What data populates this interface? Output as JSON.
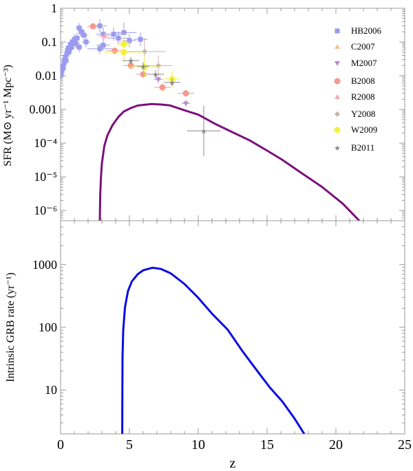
{
  "chart_data": [
    {
      "type": "scatter",
      "panel": "top",
      "ylabel": "SFR (M⊙ yr⁻¹ Mpc⁻³)",
      "yscale": "log",
      "ylim": [
        5e-07,
        1
      ],
      "xlim": [
        0,
        25
      ],
      "ytick_labels": [
        "1",
        "0.1",
        "0.01",
        "0.001",
        "10⁻⁴",
        "10⁻⁵",
        "10⁻⁶"
      ],
      "ytick_values": [
        1,
        0.1,
        0.01,
        0.001,
        0.0001,
        1e-05,
        1e-06
      ],
      "curve": {
        "color": "#7b0f7b",
        "points": [
          [
            2.85,
            5e-07
          ],
          [
            2.88,
            3e-06
          ],
          [
            2.93,
            9e-06
          ],
          [
            3.0,
            2.5e-05
          ],
          [
            3.18,
            8.3e-05
          ],
          [
            3.4,
            0.00017
          ],
          [
            3.77,
            0.00034
          ],
          [
            4.2,
            0.0006
          ],
          [
            4.6,
            0.00087
          ],
          [
            5.1,
            0.0011
          ],
          [
            5.6,
            0.0013
          ],
          [
            6.6,
            0.00145
          ],
          [
            7.3,
            0.0014
          ],
          [
            7.93,
            0.00132
          ],
          [
            9.1,
            0.00091
          ],
          [
            10.0,
            0.0007
          ],
          [
            11.3,
            0.00036
          ],
          [
            12.5,
            0.00021
          ],
          [
            13.75,
            0.00012
          ],
          [
            15.0,
            6e-05
          ],
          [
            16.1,
            3.2e-05
          ],
          [
            17.5,
            1.3e-05
          ],
          [
            19.0,
            5e-06
          ],
          [
            20.5,
            1.6e-06
          ],
          [
            21.7,
            5e-07
          ]
        ]
      },
      "legend": {
        "position": "right",
        "entries": [
          {
            "label": "HB2006",
            "color": "#9a9af0",
            "marker": "square"
          },
          {
            "label": "C2007",
            "color": "#f5c08a",
            "marker": "triangle-up"
          },
          {
            "label": "M2007",
            "color": "#b58ad6",
            "marker": "triangle-down"
          },
          {
            "label": "B2008",
            "color": "#f49a90",
            "marker": "circle"
          },
          {
            "label": "R2008",
            "color": "#f5a7b5",
            "marker": "triangle-up"
          },
          {
            "label": "Y2008",
            "color": "#c9b3a8",
            "marker": "diamond"
          },
          {
            "label": "W2009",
            "color": "#f2f23c",
            "marker": "circle"
          },
          {
            "label": "B2011",
            "color": "#888888",
            "marker": "star"
          }
        ]
      },
      "series": [
        {
          "name": "HB2006",
          "points": [
            [
              0.05,
              0.011,
              0.05,
              0.15
            ],
            [
              0.1,
              0.014,
              0.05,
              0.15
            ],
            [
              0.15,
              0.019,
              0.05,
              0.15
            ],
            [
              0.2,
              0.017,
              0.05,
              0.15
            ],
            [
              0.25,
              0.024,
              0.05,
              0.15
            ],
            [
              0.3,
              0.03,
              0.1,
              0.15
            ],
            [
              0.35,
              0.036,
              0.1,
              0.15
            ],
            [
              0.4,
              0.028,
              0.1,
              0.15
            ],
            [
              0.45,
              0.045,
              0.1,
              0.15
            ],
            [
              0.5,
              0.055,
              0.1,
              0.15
            ],
            [
              0.55,
              0.065,
              0.1,
              0.15
            ],
            [
              0.6,
              0.05,
              0.1,
              0.15
            ],
            [
              0.7,
              0.085,
              0.1,
              0.15
            ],
            [
              0.8,
              0.07,
              0.1,
              0.15
            ],
            [
              0.9,
              0.1,
              0.15,
              0.15
            ],
            [
              1.0,
              0.12,
              0.15,
              0.15
            ],
            [
              1.1,
              0.09,
              0.2,
              0.15
            ],
            [
              1.2,
              0.13,
              0.2,
              0.15
            ],
            [
              1.35,
              0.26,
              0.25,
              0.15
            ],
            [
              1.35,
              0.07,
              0.25,
              0.15
            ],
            [
              1.5,
              0.2,
              0.25,
              0.15
            ],
            [
              1.7,
              0.16,
              0.3,
              0.15
            ],
            [
              1.85,
              0.1,
              0.3,
              0.15
            ],
            [
              2.85,
              0.3,
              0.5,
              0.2
            ],
            [
              2.85,
              0.063,
              0.9,
              0.15
            ],
            [
              3.1,
              0.17,
              0.5,
              0.2
            ],
            [
              3.1,
              0.08,
              0.5,
              0.15
            ],
            [
              3.85,
              0.17,
              0.6,
              0.2
            ],
            [
              4.2,
              0.13,
              0.8,
              0.2
            ],
            [
              4.6,
              0.19,
              0.9,
              0.3
            ],
            [
              5.0,
              0.11,
              0.5,
              0.2
            ],
            [
              5.8,
              0.12,
              0.5,
              0.2
            ]
          ]
        },
        {
          "name": "C2007",
          "points": [
            [
              4.6,
              0.1,
              0.4,
              0.15
            ]
          ]
        },
        {
          "name": "M2007",
          "points": [
            [
              7.1,
              0.0077,
              0.3,
              0.1
            ],
            [
              9.1,
              0.0015,
              0.3,
              0.1
            ]
          ]
        },
        {
          "name": "B2008",
          "points": [
            [
              2.35,
              0.29,
              0.4,
              0.1
            ],
            [
              3.93,
              0.055,
              0.6,
              0.1
            ],
            [
              5.1,
              0.02,
              0.6,
              0.1
            ],
            [
              6.0,
              0.011,
              0.5,
              0.1
            ],
            [
              7.4,
              0.0045,
              0.6,
              0.12
            ],
            [
              9.1,
              0.003,
              0.6,
              0.1
            ]
          ]
        },
        {
          "name": "R2008",
          "points": [
            [
              3.2,
              0.15,
              0.5,
              0.1
            ]
          ]
        },
        {
          "name": "Y2008",
          "points": [
            [
              6.1,
              0.052,
              1.5,
              0.4
            ],
            [
              7.1,
              0.02,
              1.0,
              0.3
            ]
          ]
        },
        {
          "name": "W2009",
          "points": [
            [
              4.6,
              0.085,
              0.4,
              0.3
            ],
            [
              4.6,
              0.05,
              1.5,
              0.3
            ],
            [
              6.1,
              0.018,
              1.2,
              0.3
            ],
            [
              8.1,
              0.008,
              0.6,
              0.25
            ]
          ]
        },
        {
          "name": "B2011",
          "points": [
            [
              5.1,
              0.028,
              0.6,
              0.1
            ],
            [
              6.0,
              0.019,
              0.4,
              0.12
            ],
            [
              6.9,
              0.011,
              0.6,
              0.12
            ],
            [
              8.1,
              0.0063,
              0.6,
              0.12
            ],
            [
              10.4,
              0.00023,
              1.2,
              0.75
            ]
          ]
        }
      ]
    },
    {
      "type": "line",
      "panel": "bottom",
      "ylabel": "Intrinsic GRB rate (yr⁻¹)",
      "xlabel": "z",
      "yscale": "log",
      "ylim": [
        2,
        5000
      ],
      "xlim": [
        0,
        25
      ],
      "ytick_labels": [
        "1000",
        "100",
        "10"
      ],
      "ytick_values": [
        1000,
        100,
        10
      ],
      "xtick_labels": [
        "0",
        "5",
        "10",
        "15",
        "20",
        "25"
      ],
      "xtick_values": [
        0,
        5,
        10,
        15,
        20,
        25
      ],
      "curve": {
        "color": "#0a0ae0",
        "points": [
          [
            4.48,
            2
          ],
          [
            4.49,
            10
          ],
          [
            4.5,
            33
          ],
          [
            4.55,
            90
          ],
          [
            4.68,
            210
          ],
          [
            4.9,
            380
          ],
          [
            5.18,
            540
          ],
          [
            5.6,
            700
          ],
          [
            6.0,
            810
          ],
          [
            6.67,
            890
          ],
          [
            7.3,
            850
          ],
          [
            8.0,
            725
          ],
          [
            9.0,
            490
          ],
          [
            10.0,
            295
          ],
          [
            11.0,
            165
          ],
          [
            12.15,
            91
          ],
          [
            13.2,
            42
          ],
          [
            14.3,
            20
          ],
          [
            15.2,
            11
          ],
          [
            16.1,
            6.6
          ],
          [
            17.0,
            3.5
          ],
          [
            17.7,
            2
          ]
        ]
      }
    }
  ]
}
